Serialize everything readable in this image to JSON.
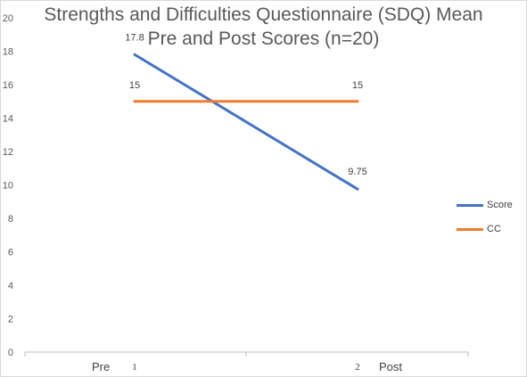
{
  "chart_data": {
    "type": "line",
    "title_line1": "Strengths and Difficulties Questionnaire (SDQ) Mean",
    "title_line2": "Pre and Post Scores (n=20)",
    "x": [
      1,
      2
    ],
    "x_tick_labels": [
      "1",
      "2"
    ],
    "x_words": {
      "left": "Pre",
      "right": "Post"
    },
    "ylim": [
      0,
      20
    ],
    "y_ticks": [
      0,
      2,
      4,
      6,
      8,
      10,
      12,
      14,
      16,
      18,
      20
    ],
    "grid": false,
    "legend_position": "right",
    "series": [
      {
        "name": "Score",
        "values": [
          17.8,
          9.75
        ],
        "data_labels": [
          "17.8",
          "9.75"
        ],
        "color": "#4472c4"
      },
      {
        "name": "CC",
        "values": [
          15,
          15
        ],
        "data_labels": [
          "15",
          "15"
        ],
        "color": "#ed7d31"
      }
    ]
  }
}
